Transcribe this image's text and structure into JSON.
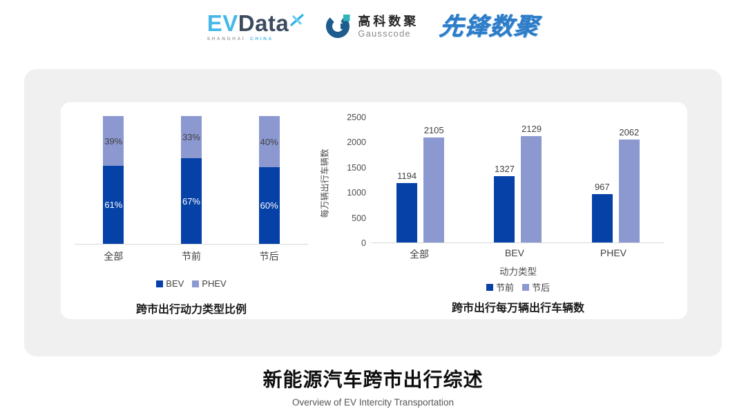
{
  "header": {
    "evdata": {
      "ev": "EV",
      "data": "Data",
      "sub_left": "SHANGHAI",
      "sub_right": "CHINA"
    },
    "gausscode": {
      "cn": "高科数聚",
      "en": "Gausscode"
    },
    "xianfeng": {
      "text": "先锋数聚"
    }
  },
  "footer": {
    "title": "新能源汽车跨市出行综述",
    "subtitle": "Overview of EV Intercity Transportation"
  },
  "colors": {
    "bev_dark_blue": "#0641a7",
    "phev_light_blue": "#8c99d1",
    "card_background": "#f0f0f1",
    "axis_gray": "#d8d8d8"
  },
  "chart_data": [
    {
      "type": "bar",
      "stacked": true,
      "title": "跨市出行动力类型比例",
      "categories": [
        "全部",
        "节前",
        "节后"
      ],
      "series": [
        {
          "name": "BEV",
          "values": [
            61,
            67,
            60
          ],
          "color": "#0641a7",
          "label_color": "#ffffff"
        },
        {
          "name": "PHEV",
          "values": [
            39,
            33,
            40
          ],
          "color": "#8c99d1",
          "label_color": "#3f3f3f"
        }
      ],
      "value_suffix": "%",
      "ylim": [
        0,
        100
      ],
      "grid": false,
      "legend_position": "bottom"
    },
    {
      "type": "bar",
      "stacked": false,
      "title": "跨市出行每万辆出行车辆数",
      "categories": [
        "全部",
        "BEV",
        "PHEV"
      ],
      "xlabel": "动力类型",
      "ylabel": "每万辆出行车辆数",
      "series": [
        {
          "name": "节前",
          "values": [
            1194,
            1327,
            967
          ],
          "color": "#0641a7",
          "label_color": "#3f3f3f"
        },
        {
          "name": "节后",
          "values": [
            2105,
            2129,
            2062
          ],
          "color": "#8c99d1",
          "label_color": "#3f3f3f"
        }
      ],
      "ylim": [
        0,
        2500
      ],
      "yticks": [
        0,
        500,
        1000,
        1500,
        2000,
        2500
      ],
      "grid": false,
      "legend_position": "bottom"
    }
  ]
}
